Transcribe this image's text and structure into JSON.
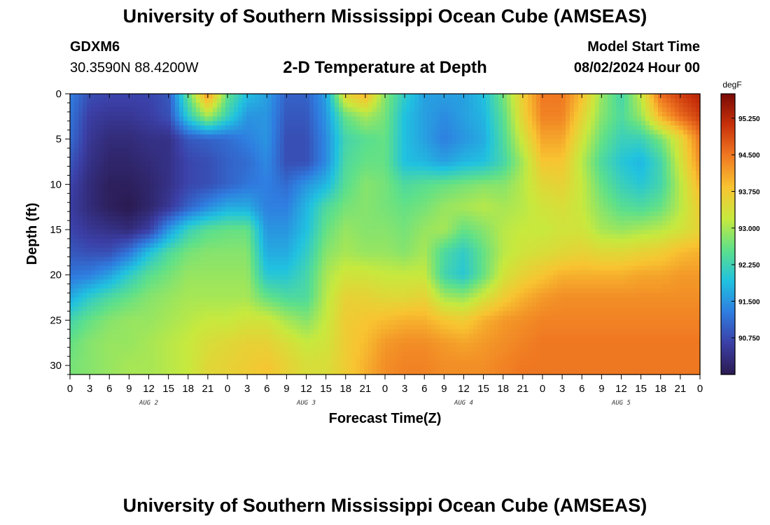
{
  "header": {
    "title": "University of Southern Mississippi Ocean Cube (AMSEAS)",
    "station": "GDXM6",
    "coordinates": "30.3590N  88.4200W",
    "subtitle": "2-D Temperature at Depth",
    "start_time_label": "Model Start Time",
    "start_time_value": "08/02/2024 Hour 00"
  },
  "footer": {
    "title": "University of Southern Mississippi Ocean Cube (AMSEAS)"
  },
  "chart_data": {
    "type": "heatmap",
    "xlabel": "Forecast Time(Z)",
    "ylabel": "Depth (ft)",
    "x_hours": [
      0,
      3,
      6,
      9,
      12,
      15,
      18,
      21,
      24,
      27,
      30,
      33,
      36,
      39,
      42,
      45,
      48,
      51,
      54,
      57,
      60,
      63,
      66,
      69,
      72,
      75,
      78,
      81,
      84,
      87,
      90,
      93,
      96
    ],
    "x_tick_labels": [
      "0",
      "3",
      "6",
      "9",
      "12",
      "15",
      "18",
      "21",
      "0",
      "3",
      "6",
      "9",
      "12",
      "15",
      "18",
      "21",
      "0",
      "3",
      "6",
      "9",
      "12",
      "15",
      "18",
      "21",
      "0",
      "3",
      "6",
      "9",
      "12",
      "15",
      "18",
      "21",
      "0"
    ],
    "day_labels": [
      {
        "label": "AUG 2",
        "hour": 12
      },
      {
        "label": "AUG 3",
        "hour": 36
      },
      {
        "label": "AUG 4",
        "hour": 60
      },
      {
        "label": "AUG 5",
        "hour": 84
      }
    ],
    "depths_ft": [
      0,
      2.5,
      5,
      7.5,
      10,
      12.5,
      15,
      17.5,
      20,
      22.5,
      25,
      27.5,
      30
    ],
    "y_ticks": [
      0,
      5,
      10,
      15,
      20,
      25,
      30
    ],
    "y_range": [
      0,
      31
    ],
    "colorbar": {
      "unit": "degF",
      "min": 90.0,
      "max": 95.75,
      "tick_values": [
        90.75,
        91.5,
        92.25,
        93.0,
        93.75,
        94.5,
        95.25
      ],
      "tick_labels": [
        "90.750",
        "91.500",
        "92.250",
        "93.000",
        "93.750",
        "94.500",
        "95.250"
      ],
      "colors": [
        "#2a1a50",
        "#3b3fa6",
        "#2f7de0",
        "#20c2e0",
        "#5ee08a",
        "#c7e93e",
        "#f8c431",
        "#f07a22",
        "#c9310b",
        "#7a0a05"
      ]
    },
    "temperature_degF": [
      [
        91.3,
        90.8,
        90.7,
        90.7,
        90.7,
        90.9,
        92.6,
        94.3,
        92.6,
        91.9,
        91.6,
        91.0,
        91.0,
        91.6,
        93.6,
        94.0,
        92.8,
        92.1,
        91.6,
        91.6,
        91.6,
        91.9,
        92.7,
        93.7,
        94.5,
        94.5,
        93.9,
        92.9,
        92.3,
        93.2,
        94.6,
        95.0,
        95.3
      ],
      [
        91.2,
        90.6,
        90.5,
        90.5,
        90.6,
        90.8,
        92.1,
        93.0,
        92.2,
        91.5,
        91.5,
        90.9,
        90.9,
        91.5,
        92.6,
        93.0,
        92.7,
        91.9,
        91.6,
        91.4,
        91.6,
        91.8,
        92.5,
        93.6,
        94.4,
        94.4,
        93.6,
        92.8,
        92.4,
        92.9,
        94.0,
        94.6,
        95.0
      ],
      [
        91.1,
        90.5,
        90.3,
        90.3,
        90.4,
        90.4,
        90.9,
        91.0,
        91.1,
        91.3,
        91.5,
        90.8,
        90.8,
        91.4,
        92.3,
        92.5,
        92.6,
        91.9,
        91.6,
        91.3,
        91.5,
        91.7,
        92.4,
        93.3,
        94.1,
        94.1,
        93.3,
        92.6,
        92.2,
        92.2,
        92.7,
        93.5,
        94.5
      ],
      [
        90.9,
        90.4,
        90.2,
        90.2,
        90.3,
        90.4,
        90.7,
        90.8,
        91.0,
        91.1,
        91.4,
        90.8,
        90.8,
        91.4,
        92.4,
        92.6,
        92.6,
        91.9,
        91.8,
        91.6,
        91.8,
        91.9,
        92.3,
        93.0,
        93.8,
        93.8,
        93.1,
        92.4,
        92.0,
        91.8,
        92.3,
        93.3,
        94.3
      ],
      [
        90.7,
        90.3,
        90.1,
        90.1,
        90.2,
        90.4,
        90.7,
        90.8,
        91.0,
        91.2,
        91.3,
        91.1,
        91.5,
        91.8,
        92.5,
        92.8,
        92.7,
        92.4,
        92.5,
        92.6,
        92.7,
        92.8,
        92.8,
        93.1,
        93.5,
        93.6,
        93.2,
        92.6,
        92.2,
        92.0,
        92.3,
        93.1,
        94.0
      ],
      [
        90.6,
        90.3,
        90.1,
        90.0,
        90.2,
        90.5,
        91.0,
        91.4,
        91.7,
        91.7,
        91.3,
        91.3,
        91.8,
        92.4,
        92.7,
        92.8,
        92.7,
        92.6,
        92.7,
        92.9,
        93.0,
        93.1,
        93.0,
        93.1,
        93.3,
        93.4,
        93.2,
        92.8,
        92.5,
        92.4,
        92.6,
        93.1,
        93.7
      ],
      [
        90.7,
        90.5,
        90.4,
        90.3,
        90.6,
        91.5,
        92.2,
        92.5,
        92.6,
        92.6,
        91.5,
        91.5,
        91.9,
        92.6,
        92.9,
        92.8,
        92.8,
        92.7,
        92.9,
        93.0,
        92.6,
        92.8,
        93.1,
        93.2,
        93.2,
        93.3,
        93.3,
        93.0,
        92.9,
        93.0,
        93.1,
        93.3,
        93.6
      ],
      [
        90.9,
        90.8,
        90.8,
        91.2,
        91.9,
        92.4,
        92.7,
        92.8,
        92.8,
        92.8,
        91.7,
        91.7,
        92.1,
        92.8,
        93.0,
        92.9,
        92.9,
        92.8,
        93.0,
        92.4,
        92.1,
        92.6,
        93.1,
        93.3,
        93.4,
        93.5,
        93.6,
        93.5,
        93.5,
        93.6,
        93.7,
        93.9,
        94.0
      ],
      [
        91.2,
        91.3,
        91.6,
        92.1,
        92.5,
        92.7,
        92.9,
        92.9,
        92.9,
        92.9,
        92.0,
        92.0,
        92.3,
        93.0,
        93.3,
        93.3,
        93.2,
        93.2,
        93.2,
        92.3,
        92.0,
        92.6,
        93.3,
        93.6,
        93.8,
        94.0,
        94.0,
        94.0,
        94.0,
        94.1,
        94.1,
        94.2,
        94.2
      ],
      [
        91.7,
        92.1,
        92.4,
        92.6,
        92.8,
        92.9,
        93.0,
        93.0,
        93.0,
        93.0,
        92.6,
        92.4,
        92.4,
        93.1,
        93.6,
        93.6,
        93.5,
        93.5,
        93.6,
        93.0,
        92.9,
        93.3,
        93.7,
        94.0,
        94.2,
        94.3,
        94.3,
        94.3,
        94.3,
        94.3,
        94.3,
        94.3,
        94.3
      ],
      [
        92.3,
        92.6,
        92.8,
        92.9,
        92.9,
        93.0,
        93.1,
        93.2,
        93.2,
        93.3,
        93.3,
        93.0,
        92.8,
        93.2,
        93.7,
        93.8,
        93.9,
        94.0,
        94.0,
        93.8,
        93.7,
        94.0,
        94.2,
        94.3,
        94.4,
        94.4,
        94.4,
        94.4,
        94.4,
        94.4,
        94.4,
        94.4,
        94.4
      ],
      [
        92.6,
        92.8,
        92.9,
        92.9,
        93.0,
        93.1,
        93.2,
        93.4,
        93.5,
        93.6,
        93.6,
        93.4,
        93.2,
        93.3,
        93.7,
        93.9,
        94.2,
        94.3,
        94.3,
        94.2,
        94.1,
        94.2,
        94.3,
        94.4,
        94.5,
        94.5,
        94.5,
        94.5,
        94.5,
        94.5,
        94.5,
        94.5,
        94.5
      ],
      [
        92.7,
        92.8,
        92.9,
        93.0,
        93.0,
        93.1,
        93.2,
        93.5,
        93.6,
        93.7,
        93.8,
        93.6,
        93.4,
        93.4,
        93.7,
        94.0,
        94.3,
        94.4,
        94.4,
        94.3,
        94.3,
        94.3,
        94.4,
        94.5,
        94.5,
        94.5,
        94.5,
        94.5,
        94.5,
        94.5,
        94.5,
        94.5,
        94.5
      ]
    ]
  }
}
